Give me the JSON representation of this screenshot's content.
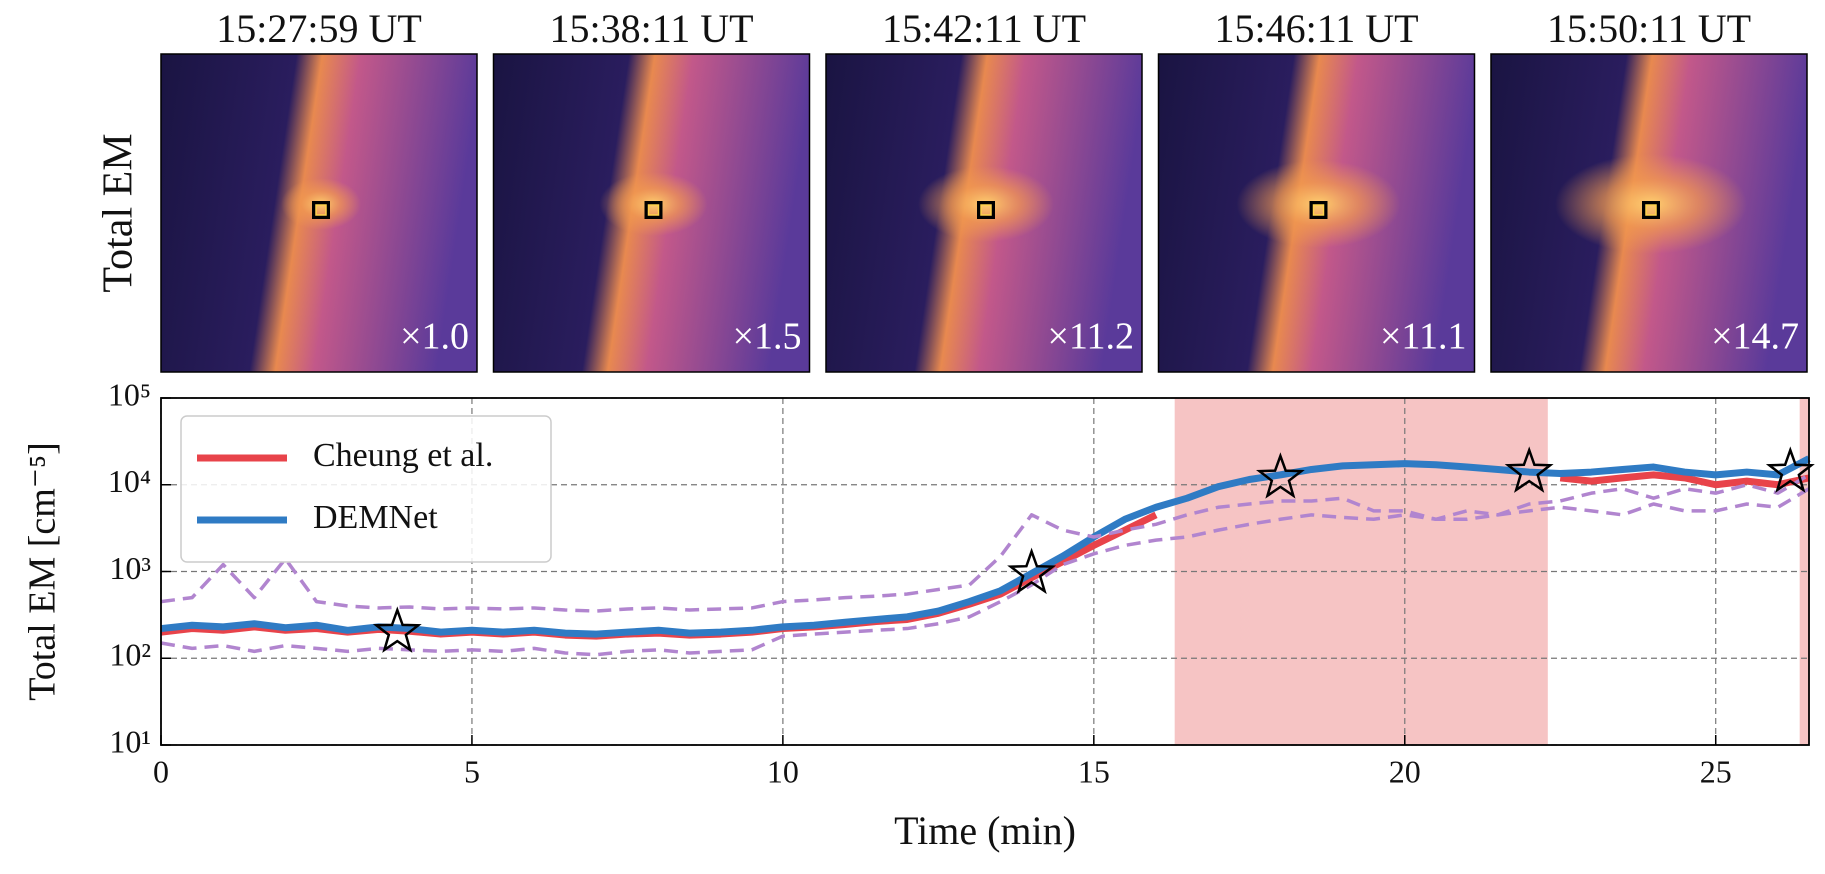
{
  "panels": [
    {
      "title": "15:27:59 UT",
      "scale_label": "×1.0"
    },
    {
      "title": "15:38:11 UT",
      "scale_label": "×1.5"
    },
    {
      "title": "15:42:11 UT",
      "scale_label": "×11.2"
    },
    {
      "title": "15:46:11 UT",
      "scale_label": "×11.1"
    },
    {
      "title": "15:50:11 UT",
      "scale_label": "×14.7"
    }
  ],
  "panel_row_label": "Total EM",
  "chart_data": {
    "type": "line",
    "x_label": "Time (min)",
    "y_label": "Total EM  [cm⁻⁵]",
    "log_y": true,
    "grid": true,
    "legend": "upper left",
    "xlim": [
      0,
      26.5
    ],
    "ylim": [
      10,
      100000
    ],
    "xticks": [
      0,
      5,
      10,
      15,
      20,
      25
    ],
    "yticks": [
      {
        "value": 10,
        "label": "10¹"
      },
      {
        "value": 100,
        "label": "10²"
      },
      {
        "value": 1000,
        "label": "10³"
      },
      {
        "value": 10000,
        "label": "10⁴"
      },
      {
        "value": 100000,
        "label": "10⁵"
      }
    ],
    "x": [
      0,
      0.5,
      1,
      1.5,
      2,
      2.5,
      3,
      3.5,
      4,
      4.5,
      5,
      5.5,
      6,
      6.5,
      7,
      7.5,
      8,
      8.5,
      9,
      9.5,
      10,
      10.5,
      11,
      11.5,
      12,
      12.5,
      13,
      13.5,
      14,
      14.5,
      15,
      15.5,
      16,
      16.5,
      17,
      17.5,
      18,
      18.5,
      19,
      19.5,
      20,
      20.5,
      21,
      21.5,
      22,
      22.5,
      23,
      23.5,
      24,
      24.5,
      25,
      25.5,
      26,
      26.5
    ],
    "series": [
      {
        "name": "Cheung et al.",
        "color": "#e8434a",
        "values": [
          200,
          220,
          210,
          230,
          210,
          220,
          200,
          215,
          205,
          190,
          200,
          190,
          200,
          185,
          180,
          190,
          195,
          185,
          190,
          200,
          220,
          230,
          245,
          265,
          280,
          330,
          420,
          550,
          850,
          1300,
          2000,
          3000,
          4500,
          null,
          null,
          null,
          null,
          null,
          null,
          null,
          null,
          null,
          null,
          null,
          null,
          12000,
          11000,
          12000,
          13000,
          12000,
          10000,
          11000,
          10000,
          12000
        ]
      },
      {
        "name": "DEMNet",
        "color": "#2f7bc4",
        "values": [
          220,
          240,
          230,
          250,
          225,
          240,
          210,
          230,
          220,
          200,
          210,
          200,
          210,
          195,
          190,
          200,
          210,
          195,
          200,
          210,
          230,
          240,
          260,
          280,
          300,
          350,
          450,
          600,
          950,
          1500,
          2500,
          4000,
          5500,
          7000,
          9500,
          11500,
          13000,
          15000,
          16500,
          17000,
          17500,
          17000,
          16000,
          15000,
          14000,
          13500,
          14000,
          15000,
          16000,
          14000,
          13000,
          14000,
          13000,
          20000
        ]
      },
      {
        "color": "#b185cf",
        "dashed": true,
        "values": [
          450,
          500,
          1200,
          500,
          1400,
          450,
          400,
          380,
          390,
          370,
          380,
          370,
          380,
          360,
          350,
          370,
          380,
          360,
          370,
          380,
          450,
          470,
          500,
          520,
          550,
          620,
          700,
          1500,
          4500,
          3000,
          2500,
          3000,
          3500,
          4500,
          5500,
          6000,
          6500,
          6500,
          7000,
          5000,
          5000,
          4000,
          5000,
          4500,
          6000,
          6500,
          8000,
          9000,
          7000,
          9000,
          8000,
          10000,
          8000,
          13000
        ]
      },
      {
        "color": "#b185cf",
        "dashed": true,
        "values": [
          150,
          130,
          140,
          120,
          140,
          130,
          120,
          130,
          125,
          120,
          125,
          120,
          130,
          115,
          110,
          120,
          125,
          115,
          120,
          125,
          180,
          190,
          200,
          210,
          220,
          250,
          300,
          450,
          700,
          1200,
          1600,
          2000,
          2300,
          2500,
          3000,
          3500,
          4000,
          4500,
          4200,
          4000,
          4500,
          4000,
          4000,
          4500,
          5000,
          5500,
          5000,
          4500,
          6000,
          5000,
          5000,
          6000,
          5500,
          9000
        ]
      }
    ],
    "markers": {
      "x": [
        3.8,
        14,
        18,
        22,
        26.2
      ],
      "y": [
        200,
        950,
        12000,
        14000,
        14000
      ]
    },
    "shaded_regions": [
      [
        16.3,
        22.3
      ],
      [
        26.35,
        26.5
      ]
    ],
    "shade_color": "#f6c4c4"
  }
}
